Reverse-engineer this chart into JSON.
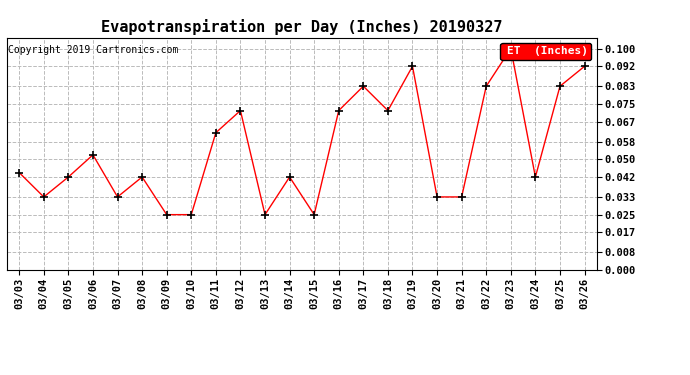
{
  "title": "Evapotranspiration per Day (Inches) 20190327",
  "copyright": "Copyright 2019 Cartronics.com",
  "legend_label": "ET  (Inches)",
  "dates": [
    "03/03",
    "03/04",
    "03/05",
    "03/06",
    "03/07",
    "03/08",
    "03/09",
    "03/10",
    "03/11",
    "03/12",
    "03/13",
    "03/14",
    "03/15",
    "03/16",
    "03/17",
    "03/18",
    "03/19",
    "03/20",
    "03/21",
    "03/22",
    "03/23",
    "03/24",
    "03/25",
    "03/26"
  ],
  "values": [
    0.044,
    0.033,
    0.042,
    0.052,
    0.033,
    0.042,
    0.025,
    0.025,
    0.062,
    0.072,
    0.025,
    0.042,
    0.025,
    0.072,
    0.083,
    0.072,
    0.092,
    0.033,
    0.033,
    0.083,
    0.1,
    0.042,
    0.083,
    0.092
  ],
  "yticks": [
    0.0,
    0.008,
    0.017,
    0.025,
    0.033,
    0.042,
    0.05,
    0.058,
    0.067,
    0.075,
    0.083,
    0.092,
    0.1
  ],
  "ytick_labels": [
    "0.000",
    "0.008",
    "0.017",
    "0.025",
    "0.033",
    "0.042",
    "0.050",
    "0.058",
    "0.067",
    "0.075",
    "0.083",
    "0.092",
    "0.100"
  ],
  "ylim": [
    0.0,
    0.105
  ],
  "line_color": "red",
  "marker": "+",
  "marker_color": "black",
  "bg_color": "white",
  "grid_color": "#bbbbbb",
  "title_fontsize": 11,
  "tick_fontsize": 7.5,
  "copyright_fontsize": 7,
  "legend_bg": "red",
  "legend_text_color": "white"
}
